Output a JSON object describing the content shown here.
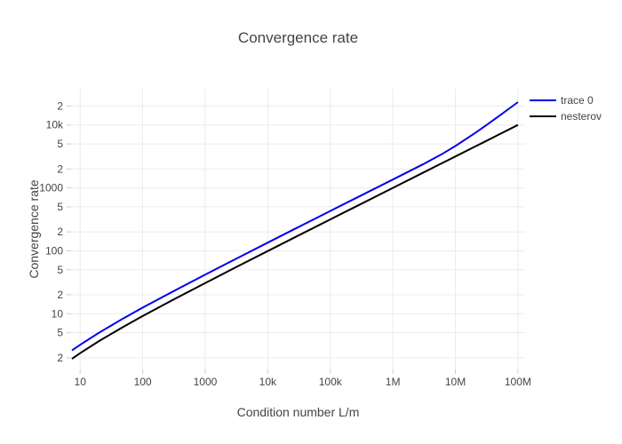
{
  "chart_data": {
    "type": "line",
    "title": "Convergence rate",
    "xlabel": "Condition number L/m",
    "ylabel": "Convergence rate",
    "x_scale": "log",
    "y_scale": "log",
    "x_range_log10": [
      0.855,
      8.115
    ],
    "y_range_log10": [
      0.115,
      4.575
    ],
    "grid": true,
    "legend_position": "outside-top-right",
    "x_ticks": [
      {
        "value": 10,
        "label": "10"
      },
      {
        "value": 100,
        "label": "100"
      },
      {
        "value": 1000,
        "label": "1000"
      },
      {
        "value": 10000,
        "label": "10k"
      },
      {
        "value": 100000,
        "label": "100k"
      },
      {
        "value": 1000000,
        "label": "1M"
      },
      {
        "value": 10000000,
        "label": "10M"
      },
      {
        "value": 100000000,
        "label": "100M"
      }
    ],
    "y_ticks": [
      {
        "value": 2,
        "label": "2"
      },
      {
        "value": 5,
        "label": "5"
      },
      {
        "value": 10,
        "label": "10"
      },
      {
        "value": 20,
        "label": "2"
      },
      {
        "value": 50,
        "label": "5"
      },
      {
        "value": 100,
        "label": "100"
      },
      {
        "value": 200,
        "label": "2"
      },
      {
        "value": 500,
        "label": "5"
      },
      {
        "value": 1000,
        "label": "1000"
      },
      {
        "value": 2000,
        "label": "2"
      },
      {
        "value": 5000,
        "label": "5"
      },
      {
        "value": 10000,
        "label": "10k"
      },
      {
        "value": 20000,
        "label": "2"
      }
    ],
    "x": [
      7.4,
      10,
      20,
      50,
      100,
      300,
      1000,
      3000,
      10000,
      30000,
      100000,
      300000,
      1000000,
      3000000,
      6000000,
      10000000,
      20000000,
      30000000,
      50000000,
      70000000,
      100000000
    ],
    "series": [
      {
        "name": "trace 0",
        "color": "#0000f0",
        "values": [
          2.61,
          3.21,
          4.99,
          8.53,
          12.5,
          22.4,
          41.9,
          73.4,
          134.9,
          234.5,
          428.9,
          743.8,
          1359,
          2355,
          3410,
          4635,
          7297,
          9660,
          13917,
          17784,
          23118
        ]
      },
      {
        "name": "nesterov",
        "color": "#000000",
        "values": [
          1.92,
          2.36,
          3.67,
          6.27,
          9.2,
          16.5,
          30.8,
          54.0,
          99.2,
          172.4,
          315.4,
          546.9,
          999.2,
          1731,
          2449,
          3162,
          4472,
          5477,
          7070,
          8366,
          9999
        ]
      }
    ],
    "colors": {
      "background": "#ffffff",
      "grid": "#ebebeb",
      "tick_mark": "#cccccc",
      "text": "#444444"
    }
  }
}
